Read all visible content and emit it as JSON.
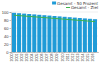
{
  "chart_data": {
    "type": "bar",
    "categories": [
      "2000",
      "2001",
      "2002",
      "2003",
      "2004",
      "2005",
      "2006",
      "2007",
      "2008",
      "2009",
      "2010",
      "2011",
      "2012",
      "2013",
      "2014",
      "2015",
      "2016"
    ],
    "series": [
      {
        "name": "Gesamt - 50 Prozent",
        "type": "bar",
        "color": "#1f9bd7",
        "values": [
          98,
          97,
          96,
          95,
          94,
          93,
          92,
          91,
          90,
          89,
          88,
          87,
          86,
          85,
          84,
          83,
          82
        ]
      },
      {
        "name": "Gesamt - Ziel",
        "type": "line",
        "color": "#3cb44b",
        "values": [
          92,
          91,
          90,
          89,
          88,
          87,
          86,
          85,
          84,
          83,
          82,
          81,
          80,
          79,
          78,
          77,
          76
        ]
      }
    ],
    "ylim": [
      0,
      100
    ],
    "yticks": [
      0,
      20,
      40,
      60,
      80,
      100
    ],
    "grid": true,
    "legend": "top"
  }
}
